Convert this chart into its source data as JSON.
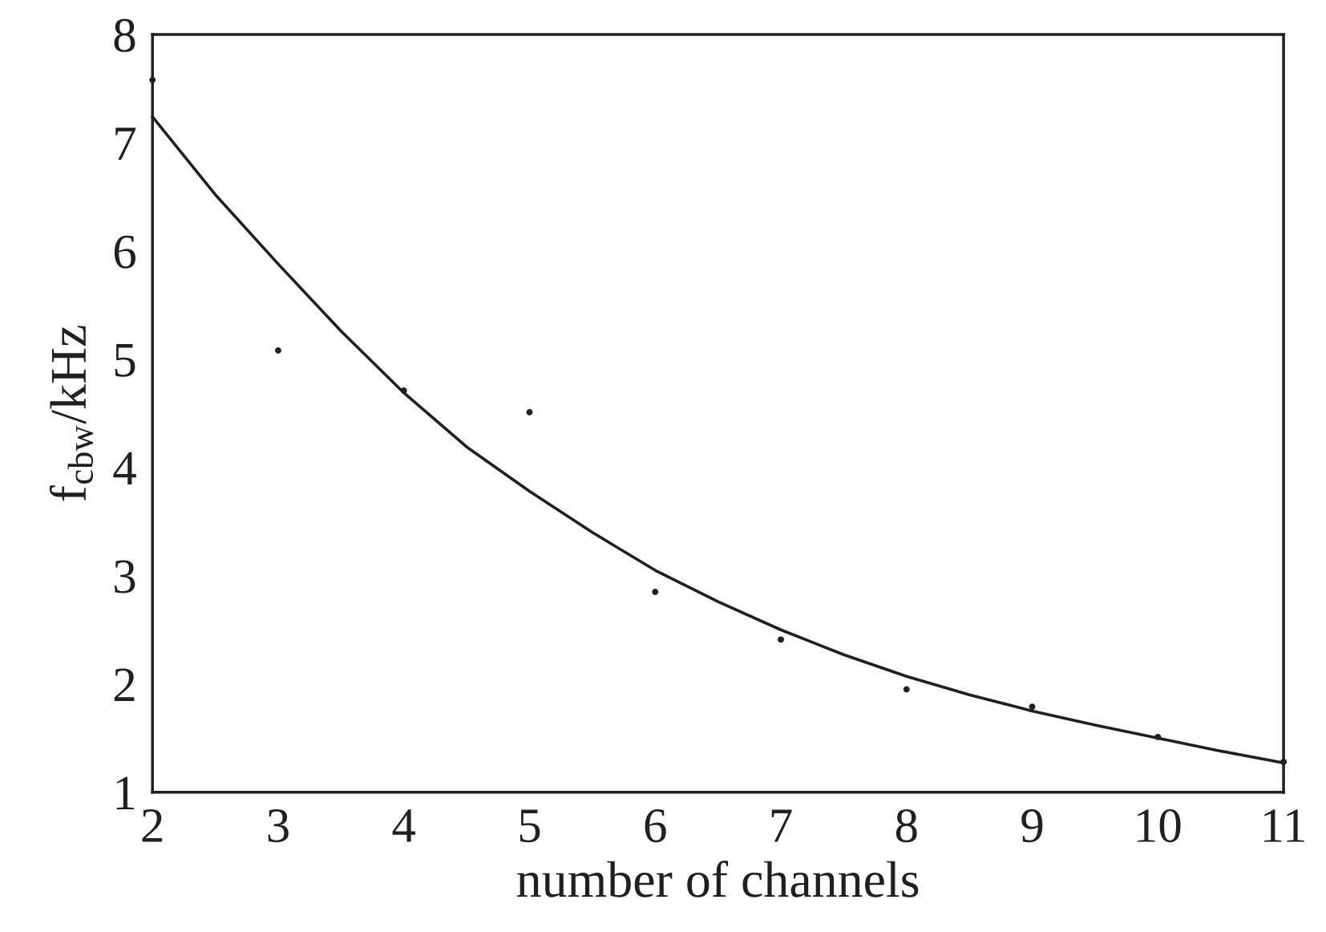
{
  "chart_data": {
    "type": "scatter",
    "xlabel": "number of channels",
    "ylabel": "f$_{cbw}$/kHz",
    "xlim": [
      2,
      11
    ],
    "ylim": [
      1,
      8
    ],
    "xticks": [
      2,
      3,
      4,
      5,
      6,
      7,
      8,
      9,
      10,
      11
    ],
    "yticks": [
      1,
      2,
      3,
      4,
      5,
      6,
      7,
      8
    ],
    "grid": false,
    "legend": false,
    "series": [
      {
        "type": "scatter",
        "color": "#231f20",
        "marker": "circle",
        "x": [
          2,
          3,
          4,
          5,
          6,
          7,
          8,
          9,
          10,
          11
        ],
        "values": [
          7.58,
          5.08,
          4.71,
          4.51,
          2.85,
          2.41,
          1.95,
          1.79,
          1.51,
          1.28
        ]
      },
      {
        "type": "line",
        "color": "#231f20",
        "marker": "none",
        "line_style": "solid",
        "x": [
          2,
          2.5,
          3,
          3.5,
          4,
          4.5,
          5,
          5.5,
          6,
          6.5,
          7,
          7.5,
          8,
          8.5,
          9,
          9.5,
          10,
          10.5,
          11
        ],
        "values": [
          7.24,
          6.52,
          5.88,
          5.26,
          4.69,
          4.19,
          3.78,
          3.4,
          3.05,
          2.76,
          2.5,
          2.27,
          2.07,
          1.9,
          1.75,
          1.62,
          1.5,
          1.38,
          1.27
        ]
      }
    ]
  }
}
